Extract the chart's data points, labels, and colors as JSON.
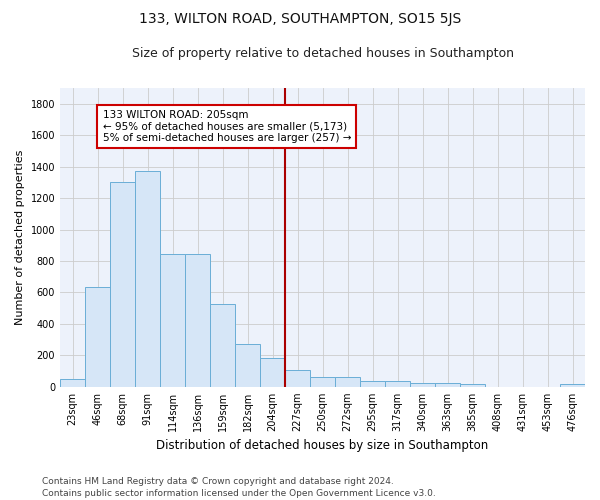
{
  "title": "133, WILTON ROAD, SOUTHAMPTON, SO15 5JS",
  "subtitle": "Size of property relative to detached houses in Southampton",
  "xlabel": "Distribution of detached houses by size in Southampton",
  "ylabel": "Number of detached properties",
  "categories": [
    "23sqm",
    "46sqm",
    "68sqm",
    "91sqm",
    "114sqm",
    "136sqm",
    "159sqm",
    "182sqm",
    "204sqm",
    "227sqm",
    "250sqm",
    "272sqm",
    "295sqm",
    "317sqm",
    "340sqm",
    "363sqm",
    "385sqm",
    "408sqm",
    "431sqm",
    "453sqm",
    "476sqm"
  ],
  "values": [
    50,
    635,
    1300,
    1375,
    845,
    845,
    525,
    270,
    185,
    105,
    65,
    65,
    38,
    38,
    25,
    25,
    15,
    0,
    0,
    0,
    15
  ],
  "bar_color": "#d6e6f7",
  "bar_edge_color": "#6aaed6",
  "vline_color": "#aa0000",
  "annotation_text": "133 WILTON ROAD: 205sqm\n← 95% of detached houses are smaller (5,173)\n5% of semi-detached houses are larger (257) →",
  "annotation_box_color": "#cc0000",
  "ylim": [
    0,
    1900
  ],
  "yticks": [
    0,
    200,
    400,
    600,
    800,
    1000,
    1200,
    1400,
    1600,
    1800
  ],
  "grid_color": "#cccccc",
  "plot_bg_color": "#edf2fb",
  "footer": "Contains HM Land Registry data © Crown copyright and database right 2024.\nContains public sector information licensed under the Open Government Licence v3.0.",
  "title_fontsize": 10,
  "subtitle_fontsize": 9,
  "xlabel_fontsize": 8.5,
  "ylabel_fontsize": 8,
  "tick_fontsize": 7,
  "annotation_fontsize": 7.5,
  "footer_fontsize": 6.5
}
